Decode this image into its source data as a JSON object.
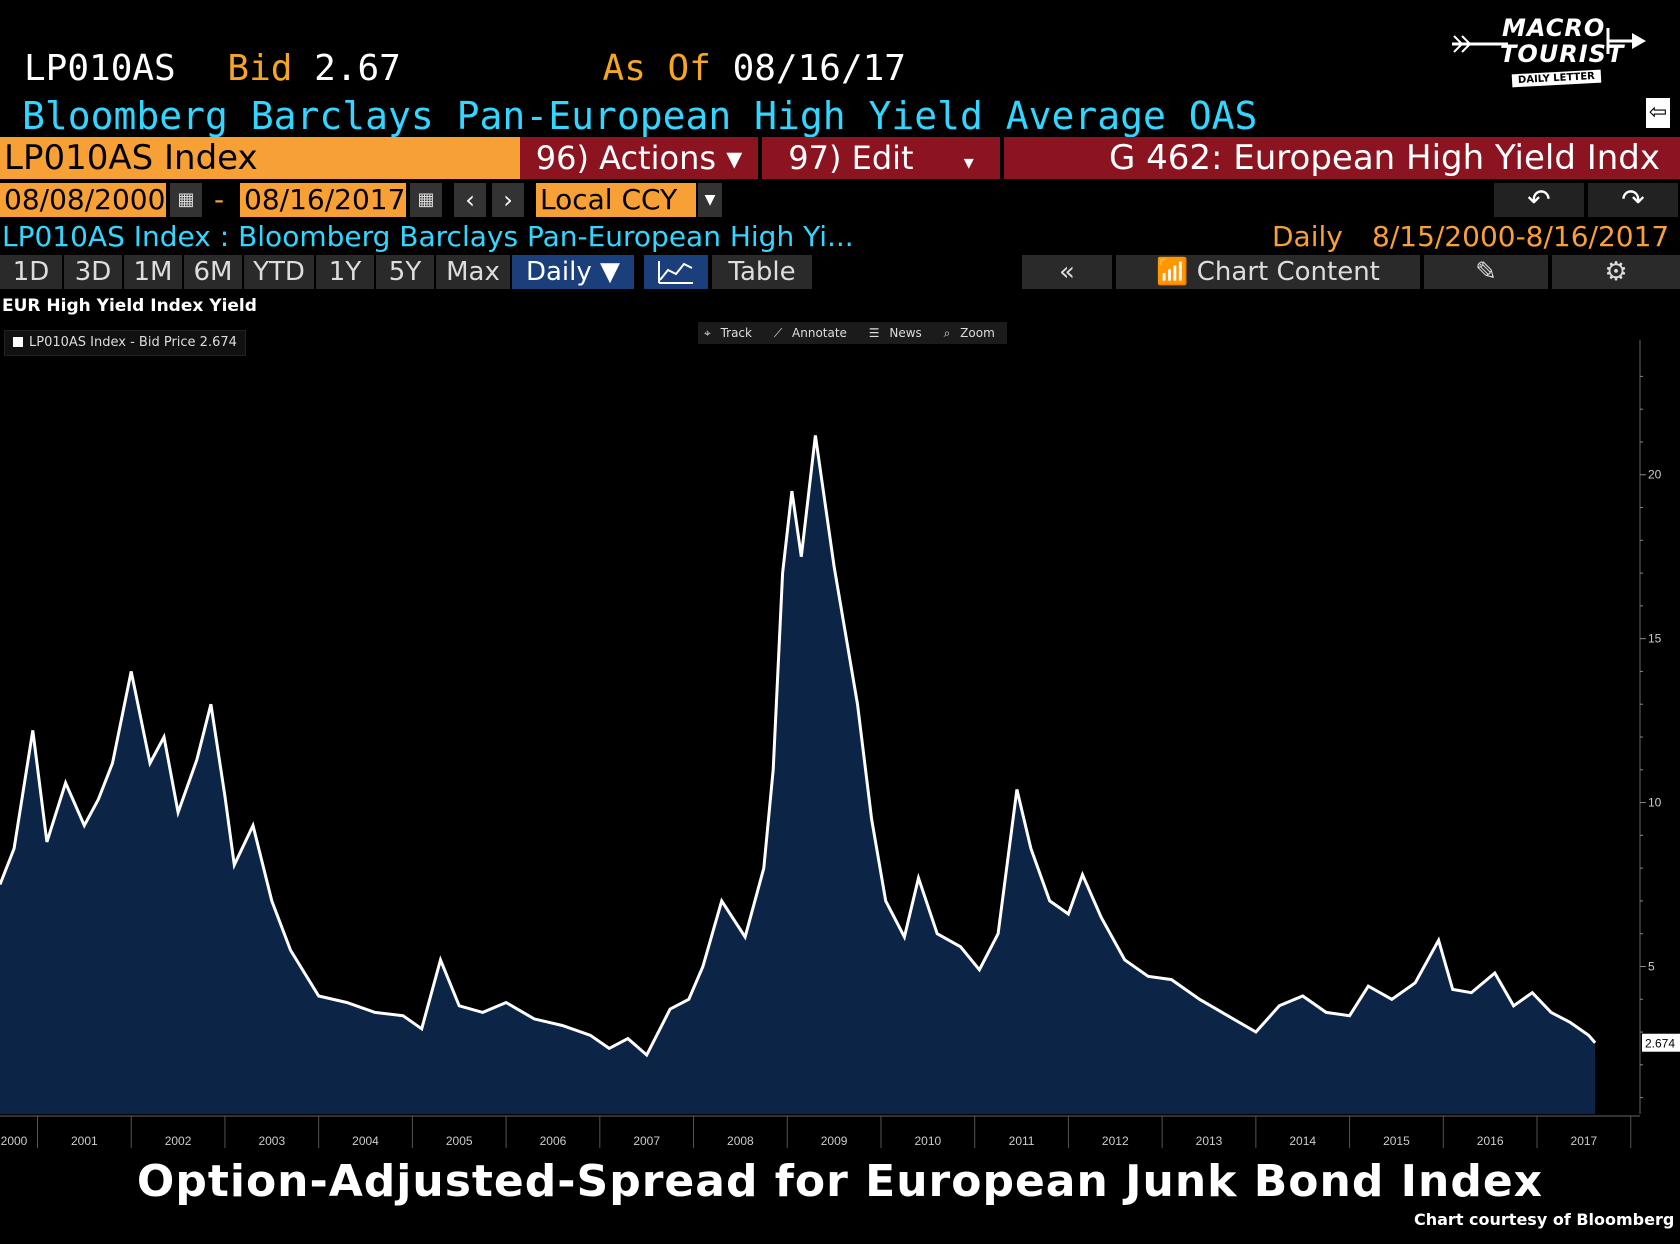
{
  "header": {
    "ticker": "LP010AS",
    "bid_label": "Bid",
    "bid_value": "2.67",
    "asof_label": "As Of",
    "asof_value": "08/16/17",
    "title": "Bloomberg Barclays Pan-European High Yield Average OAS"
  },
  "logo": {
    "line1": "MACRO",
    "line2": "TOURIST",
    "line3": "DAILY LETTER"
  },
  "toolbar": {
    "index_label": "LP010AS Index",
    "actions_label": "96) Actions ▾",
    "edit_label": "97) Edit",
    "function_label": "G 462: European High Yield Indx",
    "start_date": "08/08/2000",
    "dash": "-",
    "end_date": "08/16/2017",
    "currency": "Local CCY",
    "description": "LP010AS Index : Bloomberg Barclays Pan-European High Yi...",
    "frequency": "Daily",
    "range": "8/15/2000-8/16/2017"
  },
  "tabs": [
    "1D",
    "3D",
    "1M",
    "6M",
    "YTD",
    "1Y",
    "5Y",
    "Max",
    "Daily ▼",
    "Table"
  ],
  "chart_controls": {
    "collapse": "«",
    "content": "Chart Content"
  },
  "chart_tools": [
    "Track",
    "Annotate",
    "News",
    "Zoom"
  ],
  "legend": "LP010AS Index - Bid Price 2.674",
  "caption": "Option-Adjusted-Spread for European Junk Bond Index",
  "credit": "Chart courtesy of Bloomberg",
  "colors": {
    "accent_orange": "#f7a035",
    "cyan": "#33d6ff",
    "maroon": "#8b1420",
    "area_fill": "#0c2446",
    "line": "#ffffff"
  },
  "chart_data": {
    "type": "area",
    "title": "EUR High Yield Index Yield",
    "series": [
      {
        "name": "LP010AS Index - Bid Price",
        "x": [
          2000.6,
          2000.75,
          2000.95,
          2001.1,
          2001.3,
          2001.5,
          2001.65,
          2001.8,
          2002.0,
          2002.2,
          2002.35,
          2002.5,
          2002.7,
          2002.85,
          2003.0,
          2003.1,
          2003.3,
          2003.5,
          2003.7,
          2004.0,
          2004.3,
          2004.6,
          2004.9,
          2005.1,
          2005.3,
          2005.5,
          2005.75,
          2006.0,
          2006.3,
          2006.6,
          2006.9,
          2007.1,
          2007.3,
          2007.5,
          2007.75,
          2007.95,
          2008.1,
          2008.3,
          2008.55,
          2008.75,
          2008.85,
          2008.95,
          2009.05,
          2009.15,
          2009.3,
          2009.5,
          2009.75,
          2009.9,
          2010.05,
          2010.25,
          2010.4,
          2010.6,
          2010.85,
          2011.05,
          2011.25,
          2011.45,
          2011.6,
          2011.8,
          2012.0,
          2012.15,
          2012.35,
          2012.6,
          2012.85,
          2013.1,
          2013.4,
          2013.7,
          2014.0,
          2014.25,
          2014.5,
          2014.75,
          2015.0,
          2015.2,
          2015.45,
          2015.7,
          2015.95,
          2016.1,
          2016.3,
          2016.55,
          2016.75,
          2016.95,
          2017.15,
          2017.35,
          2017.55,
          2017.62
        ],
        "values": [
          7.5,
          8.6,
          12.2,
          8.8,
          10.6,
          9.3,
          10.1,
          11.2,
          14.0,
          11.2,
          12.0,
          9.7,
          11.3,
          13.0,
          10.2,
          8.1,
          9.3,
          7.0,
          5.5,
          4.1,
          3.9,
          3.6,
          3.5,
          3.1,
          5.2,
          3.8,
          3.6,
          3.9,
          3.4,
          3.2,
          2.9,
          2.5,
          2.8,
          2.3,
          3.7,
          4.0,
          5.0,
          7.0,
          5.9,
          8.0,
          11.0,
          17.0,
          19.5,
          17.5,
          21.2,
          17.2,
          13.0,
          9.5,
          7.0,
          5.9,
          7.7,
          6.0,
          5.6,
          4.9,
          6.0,
          10.4,
          8.6,
          7.0,
          6.6,
          7.8,
          6.5,
          5.2,
          4.7,
          4.6,
          4.0,
          3.5,
          3.0,
          3.8,
          4.1,
          3.6,
          3.5,
          4.4,
          4.0,
          4.5,
          5.8,
          4.3,
          4.2,
          4.8,
          3.8,
          4.2,
          3.6,
          3.3,
          2.9,
          2.674
        ]
      }
    ],
    "xlim": [
      2000.6,
      2017.8
    ],
    "ylim": [
      0.5,
      23.5
    ],
    "yticks": [
      5,
      10,
      15,
      20
    ],
    "xticks": [
      "2000",
      "2001",
      "2002",
      "2003",
      "2004",
      "2005",
      "2006",
      "2007",
      "2008",
      "2009",
      "2010",
      "2011",
      "2012",
      "2013",
      "2014",
      "2015",
      "2016",
      "2017"
    ],
    "last_value_label": "2.674",
    "y_axis_side": "right",
    "grid": false,
    "legend_position": "top-left"
  }
}
